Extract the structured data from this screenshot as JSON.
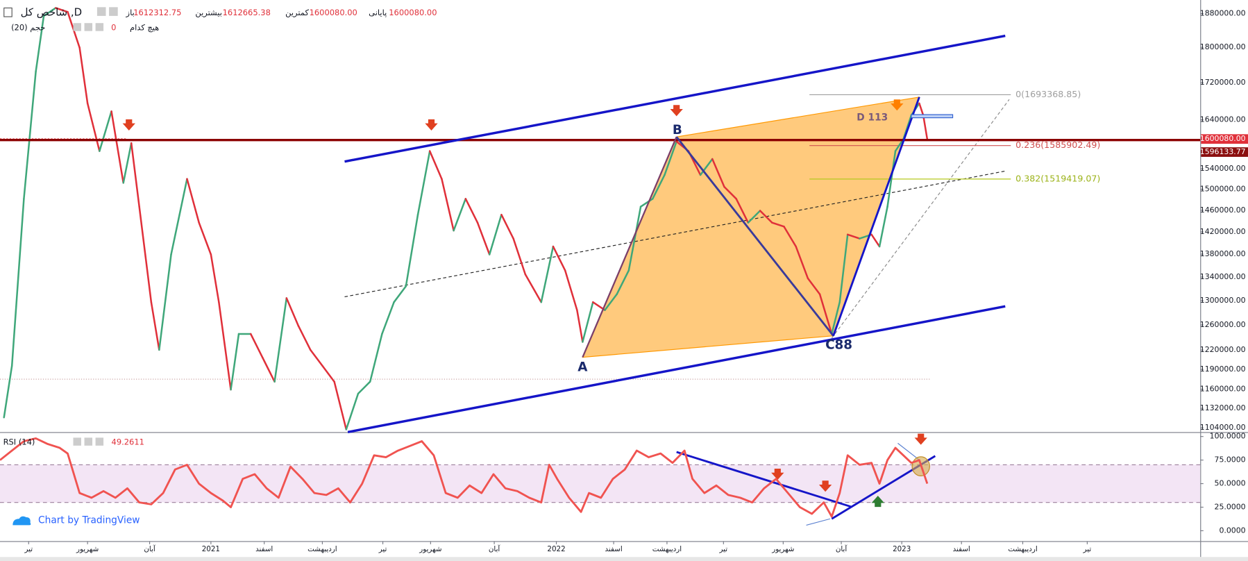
{
  "header": {
    "symbol": "شاخص کل ,D",
    "ohlc": [
      {
        "label": "باز",
        "value": "1612312.75"
      },
      {
        "label": "بیشترین",
        "value": "1612665.38"
      },
      {
        "label": "کمترین",
        "value": "1600080.00"
      },
      {
        "label": "پایانی",
        "value": "1600080.00"
      }
    ],
    "volume": {
      "label": "حجم (20)",
      "value": "0",
      "mode": "هیچ کدام"
    }
  },
  "chart_data": [
    {
      "type": "line",
      "title": "شاخص کل ,D",
      "log_scale": true,
      "grid": false,
      "x": [
        5,
        15,
        30,
        45,
        55,
        70,
        85,
        100,
        110,
        125,
        140,
        155,
        165,
        175,
        190,
        200,
        215,
        235,
        250,
        265,
        275,
        290,
        300,
        315,
        330,
        345,
        360,
        375,
        390,
        405,
        420,
        435,
        450,
        465,
        480,
        495,
        510,
        525,
        540,
        555,
        570,
        585,
        600,
        615,
        630,
        645,
        660,
        680,
        695,
        710,
        725,
        732,
        745,
        760,
        775,
        790,
        805,
        820,
        835,
        850,
        865,
        880,
        895,
        910,
        925,
        940,
        955,
        970,
        985,
        1000,
        1015,
        1030,
        1045,
        1055,
        1065,
        1080,
        1095,
        1105,
        1115,
        1125,
        1135,
        1145,
        1155,
        1160,
        1165
      ],
      "series": [
        {
          "up_color": "#3fa77a",
          "down_color": "#e0303a",
          "values": [
            1118900,
            1195700,
            1481800,
            1744900,
            1874300,
            1893500,
            1883900,
            1799300,
            1675100,
            1575500,
            1658000,
            1512400,
            1591700,
            1466800,
            1297500,
            1220400,
            1379500,
            1520100,
            1437100,
            1379500,
            1297500,
            1159600,
            1245600,
            1245600,
            1208000,
            1171500,
            1304200,
            1258300,
            1220400,
            1195700,
            1171500,
            1101800,
            1153700,
            1171500,
            1245600,
            1297500,
            1324300,
            1451800,
            1575500,
            1520100,
            1422500,
            1481800,
            1437100,
            1379500,
            1451800,
            1408000,
            1344700,
            1297500,
            1393700,
            1351600,
            1284300,
            1232900,
            1297500,
            1284300,
            1310800,
            1351600,
            1466800,
            1481800,
            1527900,
            1594900,
            1575500,
            1527900,
            1559500,
            1504700,
            1481800,
            1437100,
            1459300,
            1437100,
            1429800,
            1393700,
            1337900,
            1310800,
            1245600,
            1297500,
            1415200,
            1408000,
            1415200,
            1393700,
            1466800,
            1575500,
            1599800,
            1649600,
            1675100,
            1649600,
            1599800
          ]
        }
      ],
      "xlim": [
        0,
        1508
      ],
      "xticks": [
        {
          "value": 36,
          "label": "تیر"
        },
        {
          "value": 110,
          "label": "شهریور"
        },
        {
          "value": 188,
          "label": "آبان"
        },
        {
          "value": 265,
          "label": "2021"
        },
        {
          "value": 332,
          "label": "اسفند"
        },
        {
          "value": 405,
          "label": "اردیبهشت"
        },
        {
          "value": 481,
          "label": "تیر"
        },
        {
          "value": 541,
          "label": "شهریور"
        },
        {
          "value": 621,
          "label": "آبان"
        },
        {
          "value": 699,
          "label": "2022"
        },
        {
          "value": 771,
          "label": "اسفند"
        },
        {
          "value": 838,
          "label": "اردیبهشت"
        },
        {
          "value": 909,
          "label": "تیر"
        },
        {
          "value": 984,
          "label": "شهریور"
        },
        {
          "value": 1057,
          "label": "آبان"
        },
        {
          "value": 1133,
          "label": "2023"
        },
        {
          "value": 1208,
          "label": "اسفند"
        },
        {
          "value": 1285,
          "label": "اردیبهشت"
        },
        {
          "value": 1366,
          "label": "تیر"
        }
      ],
      "ylim": [
        1098000,
        1913000
      ],
      "yticks": [
        {
          "value": 1880000,
          "label": "1880000.00"
        },
        {
          "value": 1800000,
          "label": "1800000.00"
        },
        {
          "value": 1720000,
          "label": "1720000.00"
        },
        {
          "value": 1640000,
          "label": "1640000.00"
        },
        {
          "value": 1540000,
          "label": "1540000.00"
        },
        {
          "value": 1500000,
          "label": "1500000.00"
        },
        {
          "value": 1460000,
          "label": "1460000.00"
        },
        {
          "value": 1420000,
          "label": "1420000.00"
        },
        {
          "value": 1380000,
          "label": "1380000.00"
        },
        {
          "value": 1340000,
          "label": "1340000.00"
        },
        {
          "value": 1300000,
          "label": "1300000.00"
        },
        {
          "value": 1260000,
          "label": "1260000.00"
        },
        {
          "value": 1220000,
          "label": "1220000.00"
        },
        {
          "value": 1190000,
          "label": "1190000.00"
        },
        {
          "value": 1160000,
          "label": "1160000.00"
        },
        {
          "value": 1132000,
          "label": "1132000.00"
        },
        {
          "value": 1104000,
          "label": "1104000.00"
        }
      ],
      "price_labels": [
        {
          "value": 1600080,
          "label": "1600080.00",
          "color": "#e0303a"
        },
        {
          "value": 1596133.77,
          "label": "1596133.77",
          "color": "#8b0f0f"
        }
      ],
      "annotations": [
        "A",
        "B",
        "C88",
        "D 113",
        "0(1693368.85)",
        "0.236(1585902.49)",
        "0.382(1519419.07)"
      ]
    },
    {
      "type": "line",
      "title": "RSI (14)",
      "last_value": 49.2611,
      "color": "#f05350",
      "band": [
        30,
        70
      ],
      "band_color": "#f3e5f5",
      "x": [
        0,
        15,
        30,
        45,
        60,
        75,
        85,
        100,
        115,
        130,
        145,
        160,
        175,
        190,
        205,
        220,
        235,
        250,
        265,
        280,
        290,
        305,
        320,
        335,
        350,
        365,
        380,
        395,
        410,
        425,
        440,
        455,
        470,
        485,
        500,
        515,
        530,
        545,
        560,
        575,
        590,
        605,
        620,
        635,
        650,
        665,
        680,
        690,
        700,
        715,
        730,
        740,
        755,
        770,
        785,
        800,
        815,
        830,
        845,
        860,
        870,
        885,
        900,
        915,
        930,
        945,
        960,
        975,
        990,
        1005,
        1020,
        1035,
        1045,
        1055,
        1065,
        1080,
        1095,
        1105,
        1115,
        1125,
        1135,
        1145,
        1155,
        1165
      ],
      "values": [
        75,
        85,
        95,
        98,
        92,
        88,
        82,
        40,
        35,
        42,
        35,
        45,
        30,
        28,
        40,
        65,
        70,
        50,
        40,
        32,
        25,
        55,
        60,
        45,
        35,
        68,
        55,
        40,
        38,
        45,
        30,
        50,
        80,
        78,
        85,
        90,
        95,
        80,
        40,
        35,
        48,
        40,
        60,
        45,
        42,
        35,
        30,
        70,
        55,
        35,
        20,
        40,
        35,
        55,
        65,
        85,
        78,
        82,
        72,
        85,
        55,
        40,
        48,
        38,
        35,
        30,
        45,
        55,
        40,
        25,
        18,
        30,
        15,
        40,
        80,
        70,
        72,
        50,
        75,
        88,
        80,
        72,
        75,
        50
      ],
      "xlim": [
        0,
        1508
      ],
      "ylim": [
        -11,
        103
      ],
      "yticks": [
        {
          "value": 100,
          "label": "100.0000"
        },
        {
          "value": 75,
          "label": "75.0000"
        },
        {
          "value": 50,
          "label": "50.0000"
        },
        {
          "value": 25,
          "label": "25.0000"
        },
        {
          "value": 0,
          "label": "0.0000"
        }
      ],
      "watermark": "Chart by TradingView"
    }
  ]
}
